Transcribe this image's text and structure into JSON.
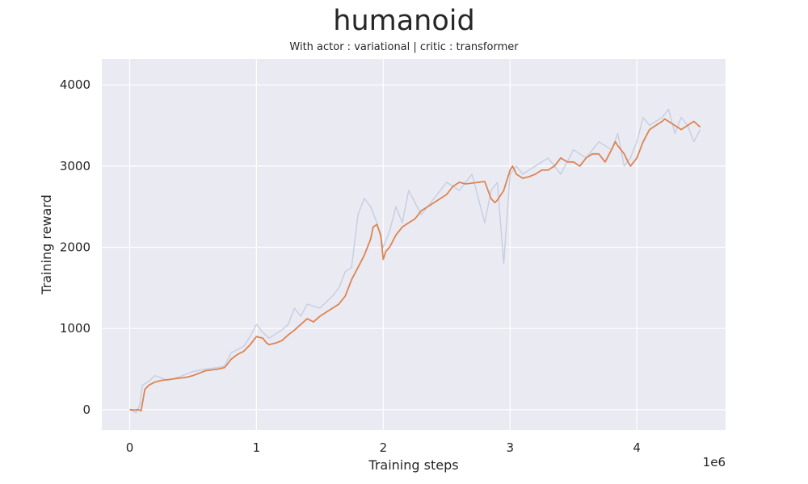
{
  "chart_data": {
    "type": "line",
    "title": "humanoid",
    "subtitle": "With actor : variational | critic : transformer",
    "xlabel": "Training steps",
    "ylabel": "Training reward",
    "x_offset_label": "1e6",
    "xlim": [
      -0.22,
      4.7
    ],
    "ylim": [
      -250,
      4320
    ],
    "x_ticks": [
      0,
      1,
      2,
      3,
      4
    ],
    "x_tick_labels": [
      "0",
      "1",
      "2",
      "3",
      "4"
    ],
    "y_ticks": [
      0,
      1000,
      2000,
      3000,
      4000
    ],
    "y_tick_labels": [
      "0",
      "1000",
      "2000",
      "3000",
      "4000"
    ],
    "grid": true,
    "background": "#eaeaf2",
    "series": [
      {
        "role": "raw",
        "color": "#c5cee1",
        "x": [
          0,
          0.05,
          0.08,
          0.1,
          0.15,
          0.2,
          0.3,
          0.4,
          0.5,
          0.6,
          0.7,
          0.75,
          0.8,
          0.9,
          0.95,
          1.0,
          1.05,
          1.1,
          1.2,
          1.25,
          1.3,
          1.35,
          1.4,
          1.5,
          1.6,
          1.65,
          1.7,
          1.75,
          1.8,
          1.85,
          1.9,
          1.95,
          2.0,
          2.05,
          2.1,
          2.15,
          2.2,
          2.3,
          2.4,
          2.5,
          2.6,
          2.7,
          2.8,
          2.85,
          2.9,
          2.95,
          3.0,
          3.05,
          3.1,
          3.2,
          3.3,
          3.4,
          3.5,
          3.6,
          3.7,
          3.8,
          3.85,
          3.9,
          3.95,
          4.0,
          4.05,
          4.1,
          4.2,
          4.25,
          4.3,
          4.35,
          4.4,
          4.45,
          4.5
        ],
        "y": [
          0,
          -40,
          60,
          300,
          350,
          420,
          360,
          410,
          470,
          500,
          520,
          540,
          700,
          780,
          900,
          1050,
          950,
          880,
          980,
          1050,
          1250,
          1150,
          1300,
          1250,
          1400,
          1500,
          1700,
          1750,
          2400,
          2600,
          2500,
          2300,
          2000,
          2200,
          2500,
          2300,
          2700,
          2400,
          2600,
          2800,
          2700,
          2900,
          2300,
          2700,
          2800,
          1800,
          2900,
          3000,
          2900,
          3000,
          3100,
          2900,
          3200,
          3100,
          3300,
          3200,
          3400,
          3000,
          3100,
          3300,
          3600,
          3500,
          3600,
          3700,
          3400,
          3600,
          3500,
          3300,
          3450
        ]
      },
      {
        "role": "smoothed",
        "color": "#dd8452",
        "x": [
          0,
          0.04,
          0.07,
          0.09,
          0.12,
          0.15,
          0.2,
          0.25,
          0.3,
          0.35,
          0.4,
          0.45,
          0.5,
          0.55,
          0.6,
          0.65,
          0.7,
          0.75,
          0.8,
          0.85,
          0.9,
          0.95,
          1.0,
          1.05,
          1.08,
          1.1,
          1.15,
          1.2,
          1.25,
          1.3,
          1.35,
          1.4,
          1.45,
          1.5,
          1.55,
          1.6,
          1.65,
          1.7,
          1.75,
          1.8,
          1.85,
          1.9,
          1.92,
          1.95,
          1.98,
          2.0,
          2.02,
          2.05,
          2.1,
          2.15,
          2.2,
          2.25,
          2.3,
          2.35,
          2.4,
          2.45,
          2.5,
          2.55,
          2.6,
          2.65,
          2.7,
          2.75,
          2.8,
          2.85,
          2.88,
          2.9,
          2.95,
          3.0,
          3.02,
          3.05,
          3.1,
          3.15,
          3.2,
          3.25,
          3.3,
          3.35,
          3.4,
          3.45,
          3.5,
          3.55,
          3.6,
          3.65,
          3.7,
          3.75,
          3.8,
          3.83,
          3.85,
          3.9,
          3.93,
          3.95,
          4.0,
          4.05,
          4.1,
          4.15,
          4.2,
          4.22,
          4.25,
          4.3,
          4.35,
          4.4,
          4.45,
          4.5
        ],
        "y": [
          0,
          -5,
          0,
          -15,
          250,
          300,
          340,
          360,
          370,
          380,
          390,
          400,
          420,
          450,
          480,
          490,
          500,
          520,
          620,
          680,
          720,
          800,
          900,
          880,
          820,
          800,
          820,
          850,
          920,
          980,
          1050,
          1120,
          1080,
          1150,
          1200,
          1250,
          1300,
          1400,
          1600,
          1750,
          1900,
          2100,
          2250,
          2280,
          2150,
          1850,
          1950,
          2000,
          2150,
          2250,
          2300,
          2350,
          2450,
          2500,
          2550,
          2600,
          2650,
          2750,
          2800,
          2780,
          2790,
          2800,
          2810,
          2600,
          2550,
          2580,
          2700,
          2950,
          3000,
          2900,
          2850,
          2870,
          2900,
          2950,
          2950,
          3000,
          3100,
          3050,
          3050,
          3000,
          3100,
          3150,
          3150,
          3050,
          3200,
          3300,
          3250,
          3150,
          3050,
          3000,
          3100,
          3300,
          3450,
          3500,
          3550,
          3580,
          3550,
          3500,
          3450,
          3500,
          3550,
          3480
        ]
      }
    ]
  }
}
